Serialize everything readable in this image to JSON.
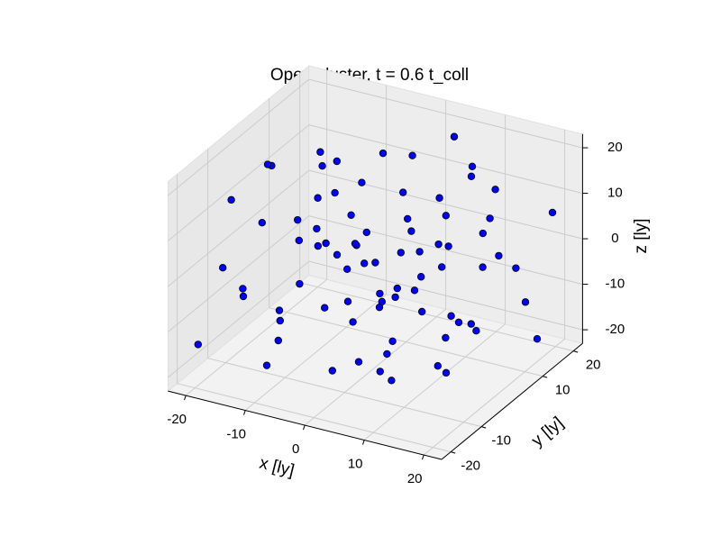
{
  "chart_data": {
    "type": "scatter3d",
    "title": "Open cluster, t = 0.6 t_coll",
    "xlabel": "x [ly]",
    "ylabel": "y [ly]",
    "zlabel": "z [ly]",
    "color": "#0000ff",
    "edgecolor": "#000000",
    "xlim": [
      -23,
      23
    ],
    "ylim": [
      -23,
      23
    ],
    "zlim": [
      -23,
      23
    ],
    "xticks": [
      -20,
      -10,
      0,
      10,
      20
    ],
    "yticks": [
      -20,
      -10,
      10,
      20
    ],
    "zticks": [
      -20,
      -10,
      0,
      10,
      20
    ],
    "grid": true,
    "x": [
      -20,
      -18,
      -15,
      -12,
      -10,
      -8,
      -5,
      -3,
      0,
      2,
      5,
      8,
      10,
      12,
      15,
      18,
      20,
      -17,
      -14,
      -6,
      -2,
      3,
      6,
      9,
      13,
      16,
      19,
      -19,
      -11,
      -7,
      -1,
      4,
      7,
      11,
      14,
      17,
      -16,
      -13,
      -9,
      -4,
      1,
      5,
      10,
      12,
      -21,
      -18,
      -8,
      -3,
      2,
      6,
      9,
      14,
      18,
      21,
      -12,
      -6,
      0,
      4,
      8,
      15,
      -15,
      -10,
      -2,
      3,
      11,
      16,
      20,
      -20,
      -7,
      1,
      7,
      13,
      -14,
      -5,
      19,
      -9,
      -1,
      12,
      6,
      -16
    ],
    "y": [
      5,
      -2,
      10,
      -8,
      15,
      3,
      -15,
      8,
      0,
      -10,
      12,
      -5,
      18,
      -18,
      6,
      -12,
      14,
      -14,
      18,
      -20,
      16,
      -2,
      20,
      -16,
      2,
      -8,
      9,
      12,
      -4,
      7,
      -7,
      4,
      -12,
      10,
      -20,
      16,
      0,
      -18,
      20,
      -11,
      13,
      -17,
      1,
      17,
      -9,
      17,
      -1,
      3,
      -20,
      9,
      -3,
      12,
      -2,
      -16,
      6,
      13,
      -14,
      18,
      -9,
      -6,
      -6,
      -16,
      -4,
      7,
      -13,
      4,
      19,
      -19,
      10,
      19,
      -19,
      -10,
      14,
      -9,
      -13,
      5,
      11,
      8,
      -6,
      -12
    ],
    "z": [
      12,
      4,
      -3,
      -10,
      6,
      18,
      2,
      -14,
      0,
      10,
      -6,
      15,
      3,
      -12,
      8,
      -4,
      -18,
      16,
      -16,
      -8,
      14,
      -18,
      12,
      5,
      -10,
      20,
      0,
      -8,
      8,
      -2,
      -5,
      6,
      -15,
      17,
      10,
      -12,
      -18,
      0,
      10,
      19,
      -10,
      -2,
      -20,
      -4,
      -3,
      9,
      -12,
      4,
      16,
      1,
      7,
      14,
      -8,
      4,
      14,
      -19,
      -16,
      19,
      0,
      -16,
      20,
      -17,
      12,
      -9,
      13,
      2,
      7,
      -14,
      -8,
      4,
      -9,
      -1,
      3,
      7,
      17,
      -4,
      9,
      -14,
      -12,
      -6
    ]
  }
}
